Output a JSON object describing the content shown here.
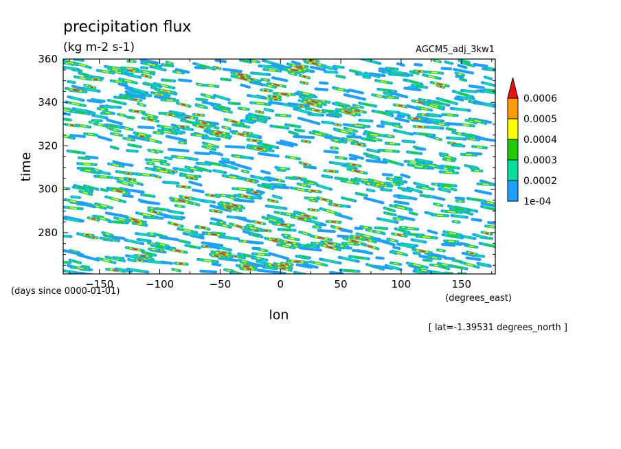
{
  "chart_data": {
    "type": "heatmap",
    "title": "precipitation flux",
    "subtitle": "(kg m-2 s-1)",
    "run_label": "AGCM5_adj_3kw1",
    "xlabel": "lon",
    "x_units": "(degrees_east)",
    "ylabel": "time",
    "y_units": "(days since 0000-01-01)",
    "annotation": "[ lat=-1.39531 degrees_north ]",
    "xlim": [
      -180,
      178
    ],
    "ylim": [
      261,
      360
    ],
    "x_ticks": [
      -150,
      -100,
      -50,
      0,
      50,
      100,
      150
    ],
    "x_tick_labels": [
      "-150",
      "-100",
      "-50",
      "0",
      "50",
      "100",
      "150"
    ],
    "y_ticks": [
      280,
      300,
      320,
      340,
      360
    ],
    "y_tick_labels": [
      "280",
      "300",
      "320",
      "340",
      "360"
    ],
    "grid": false,
    "legend_position": "right",
    "colorbar": {
      "levels": [
        0.0001,
        0.0002,
        0.0003,
        0.0004,
        0.0005,
        0.0006
      ],
      "labels": [
        "1e-04",
        "0.0002",
        "0.0003",
        "0.0004",
        "0.0005",
        "0.0006"
      ],
      "colors": [
        "#1fa0ff",
        "#00e0a0",
        "#22cc00",
        "#ffff00",
        "#ff9900",
        "#ee1111"
      ],
      "extend": "max"
    },
    "pattern": {
      "description_free": true,
      "bands": [
        {
          "lon": -140,
          "time": 355,
          "level": 3
        },
        {
          "lon": -100,
          "time": 345,
          "level": 4
        },
        {
          "lon": -60,
          "time": 330,
          "level": 5
        },
        {
          "lon": -50,
          "time": 326,
          "level": 5
        },
        {
          "lon": -20,
          "time": 318,
          "level": 5
        },
        {
          "lon": -80,
          "time": 295,
          "level": 5
        },
        {
          "lon": -40,
          "time": 292,
          "level": 5
        },
        {
          "lon": 20,
          "time": 287,
          "level": 5
        },
        {
          "lon": 45,
          "time": 274,
          "level": 5
        },
        {
          "lon": 65,
          "time": 277,
          "level": 5
        },
        {
          "lon": 0,
          "time": 264,
          "level": 5
        },
        {
          "lon": -50,
          "time": 270,
          "level": 5
        },
        {
          "lon": 30,
          "time": 340,
          "level": 5
        },
        {
          "lon": 60,
          "time": 336,
          "level": 5
        },
        {
          "lon": -30,
          "time": 352,
          "level": 5
        },
        {
          "lon": 10,
          "time": 355,
          "level": 5
        },
        {
          "lon": 80,
          "time": 302,
          "level": 4
        },
        {
          "lon": 120,
          "time": 310,
          "level": 3
        },
        {
          "lon": 150,
          "time": 290,
          "level": 2
        },
        {
          "lon": -160,
          "time": 300,
          "level": 2
        }
      ]
    }
  }
}
